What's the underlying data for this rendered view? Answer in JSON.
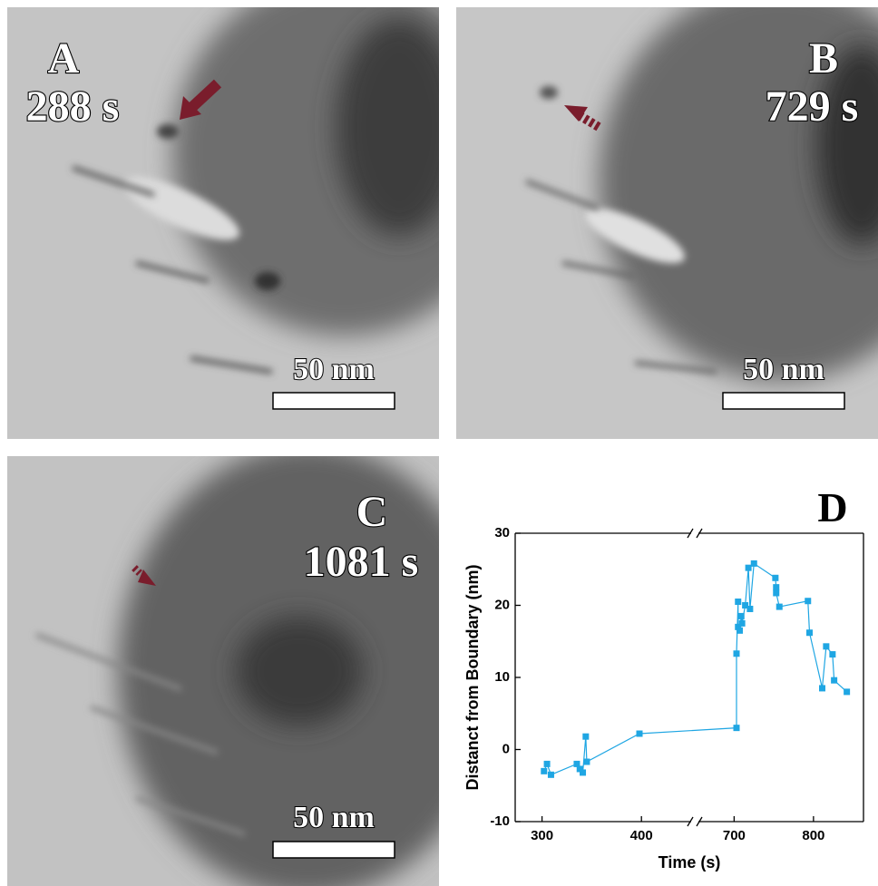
{
  "panels": [
    {
      "label": "A",
      "time": "288 s",
      "scale_bar": "50 nm"
    },
    {
      "label": "B",
      "time": "729 s",
      "scale_bar": "50 nm"
    },
    {
      "label": "C",
      "time": "1081 s",
      "scale_bar": "50 nm"
    }
  ],
  "chart_data": {
    "type": "line",
    "title": "D",
    "x_label": "Time (s)",
    "y_label": "Distanct from Boundary (nm)",
    "x": [
      302,
      305,
      309,
      335,
      338,
      341,
      344,
      345,
      398,
      703,
      703,
      705,
      705,
      707,
      709,
      710,
      714,
      718,
      720,
      725,
      752,
      753,
      753,
      757,
      793,
      795,
      811,
      816,
      824,
      826,
      842
    ],
    "values": [
      -3,
      -2,
      -3.5,
      -2,
      -2.7,
      -3.2,
      1.8,
      -1.7,
      2.2,
      3,
      13.3,
      20.5,
      17,
      16.5,
      18.5,
      17.5,
      20,
      25.2,
      19.5,
      25.8,
      23.8,
      22.5,
      21.7,
      19.8,
      20.6,
      16.2,
      8.5,
      14.3,
      13.2,
      9.6,
      8
    ],
    "color": "#1fa6e3",
    "xlim": [
      273,
      863
    ],
    "xbreak": [
      450,
      655
    ],
    "xticks": [
      300,
      400,
      700,
      800
    ],
    "ylim": [
      -10,
      30
    ],
    "yticks": [
      -10,
      0,
      10,
      20,
      30
    ]
  }
}
